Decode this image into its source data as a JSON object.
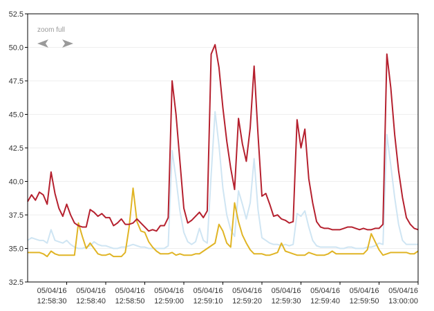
{
  "chart_data": {
    "type": "line",
    "title": "",
    "xlabel": "",
    "ylabel": "",
    "ylim": [
      32.5,
      52.5
    ],
    "xlim": [
      "12:58:20",
      "13:00:00"
    ],
    "grid": true,
    "y_ticks": [
      "52.5",
      "50.0",
      "47.5",
      "45.0",
      "42.5",
      "40.0",
      "37.5",
      "35.0",
      "32.5"
    ],
    "x_ticks": [
      {
        "date": "05/04/16",
        "time": "12:58:30"
      },
      {
        "date": "05/04/16",
        "time": "12:58:40"
      },
      {
        "date": "05/04/16",
        "time": "12:58:50"
      },
      {
        "date": "05/04/16",
        "time": "12:59:00"
      },
      {
        "date": "05/04/16",
        "time": "12:59:10"
      },
      {
        "date": "05/04/16",
        "time": "12:59:20"
      },
      {
        "date": "05/04/16",
        "time": "12:59:30"
      },
      {
        "date": "05/04/16",
        "time": "12:59:40"
      },
      {
        "date": "05/04/16",
        "time": "12:59:50"
      },
      {
        "date": "05/04/16",
        "time": "13:00:00"
      }
    ],
    "x": [
      "12:58:20",
      "12:58:21",
      "12:58:22",
      "12:58:23",
      "12:58:24",
      "12:58:25",
      "12:58:26",
      "12:58:27",
      "12:58:28",
      "12:58:29",
      "12:58:30",
      "12:58:31",
      "12:58:32",
      "12:58:33",
      "12:58:34",
      "12:58:35",
      "12:58:36",
      "12:58:37",
      "12:58:38",
      "12:58:39",
      "12:58:40",
      "12:58:41",
      "12:58:42",
      "12:58:43",
      "12:58:44",
      "12:58:45",
      "12:58:46",
      "12:58:47",
      "12:58:48",
      "12:58:49",
      "12:58:50",
      "12:58:51",
      "12:58:52",
      "12:58:53",
      "12:58:54",
      "12:58:55",
      "12:58:56",
      "12:58:57",
      "12:58:58",
      "12:58:59",
      "12:59:00",
      "12:59:01",
      "12:59:02",
      "12:59:03",
      "12:59:04",
      "12:59:05",
      "12:59:06",
      "12:59:07",
      "12:59:08",
      "12:59:09",
      "12:59:10",
      "12:59:11",
      "12:59:12",
      "12:59:13",
      "12:59:14",
      "12:59:15",
      "12:59:16",
      "12:59:17",
      "12:59:18",
      "12:59:19",
      "12:59:20",
      "12:59:21",
      "12:59:22",
      "12:59:23",
      "12:59:24",
      "12:59:25",
      "12:59:26",
      "12:59:27",
      "12:59:28",
      "12:59:29",
      "12:59:30",
      "12:59:31",
      "12:59:32",
      "12:59:33",
      "12:59:34",
      "12:59:35",
      "12:59:36",
      "12:59:37",
      "12:59:38",
      "12:59:39",
      "12:59:40",
      "12:59:41",
      "12:59:42",
      "12:59:43",
      "12:59:44",
      "12:59:45",
      "12:59:46",
      "12:59:47",
      "12:59:48",
      "12:59:49",
      "12:59:50",
      "12:59:51",
      "12:59:52",
      "12:59:53",
      "12:59:54",
      "12:59:55",
      "12:59:56",
      "12:59:57",
      "12:59:58",
      "12:59:59",
      "13:00:00"
    ],
    "series": [
      {
        "color": "#b5202e",
        "stroke_width": 2,
        "values": [
          38.5,
          39.0,
          38.6,
          39.2,
          39.0,
          38.3,
          40.7,
          39.1,
          38.0,
          37.4,
          38.3,
          37.5,
          36.9,
          36.7,
          36.6,
          36.6,
          37.9,
          37.7,
          37.4,
          37.6,
          37.3,
          37.3,
          36.7,
          36.9,
          37.2,
          36.8,
          36.8,
          36.9,
          37.2,
          36.9,
          36.6,
          36.3,
          36.4,
          36.3,
          36.7,
          36.7,
          37.3,
          47.5,
          45.0,
          41.5,
          38.0,
          36.9,
          37.1,
          37.4,
          37.7,
          37.3,
          37.8,
          49.5,
          50.2,
          48.5,
          45.5,
          43.0,
          41.0,
          39.4,
          44.7,
          42.8,
          41.5,
          44.0,
          48.6,
          43.5,
          38.9,
          39.1,
          38.3,
          37.4,
          37.5,
          37.2,
          37.1,
          36.9,
          37.0,
          44.6,
          42.5,
          43.9,
          40.2,
          38.4,
          37.0,
          36.6,
          36.5,
          36.5,
          36.4,
          36.4,
          36.4,
          36.5,
          36.6,
          36.6,
          36.5,
          36.4,
          36.5,
          36.4,
          36.4,
          36.5,
          36.5,
          36.8,
          49.5,
          47.0,
          43.5,
          40.8,
          38.8,
          37.3,
          36.8,
          36.5,
          36.4
        ]
      },
      {
        "color": "#cfe5f3",
        "stroke_width": 2,
        "values": [
          35.6,
          35.8,
          35.7,
          35.6,
          35.6,
          35.4,
          36.4,
          35.6,
          35.5,
          35.4,
          35.6,
          35.3,
          35.1,
          35.0,
          35.0,
          35.1,
          35.2,
          35.5,
          35.3,
          35.2,
          35.2,
          35.1,
          35.0,
          35.0,
          35.1,
          35.1,
          35.2,
          35.3,
          35.2,
          35.1,
          35.1,
          35.0,
          35.0,
          35.0,
          35.0,
          35.0,
          35.2,
          42.3,
          40.2,
          37.8,
          36.2,
          35.5,
          35.3,
          35.5,
          36.5,
          35.6,
          35.4,
          40.5,
          45.2,
          42.7,
          39.5,
          37.5,
          36.4,
          35.9,
          39.3,
          38.3,
          37.2,
          38.4,
          41.7,
          37.9,
          35.8,
          35.6,
          35.4,
          35.3,
          35.3,
          35.2,
          35.3,
          35.2,
          35.3,
          37.6,
          37.4,
          37.8,
          36.6,
          35.6,
          35.2,
          35.1,
          35.1,
          35.1,
          35.1,
          35.1,
          35.0,
          35.0,
          35.1,
          35.1,
          35.0,
          35.0,
          35.0,
          35.1,
          35.1,
          35.2,
          35.4,
          35.3,
          43.5,
          41.2,
          38.8,
          36.8,
          35.6,
          35.3,
          35.3,
          35.3,
          35.3
        ]
      },
      {
        "color": "#e0b424",
        "stroke_width": 2,
        "values": [
          34.7,
          34.7,
          34.7,
          34.7,
          34.6,
          34.4,
          34.8,
          34.6,
          34.5,
          34.5,
          34.5,
          34.5,
          34.5,
          36.9,
          35.9,
          35.0,
          35.4,
          35.0,
          34.6,
          34.5,
          34.5,
          34.6,
          34.4,
          34.4,
          34.4,
          34.7,
          36.6,
          39.5,
          37.0,
          36.3,
          36.2,
          35.5,
          35.1,
          34.8,
          34.6,
          34.6,
          34.6,
          34.7,
          34.5,
          34.6,
          34.5,
          34.5,
          34.5,
          34.6,
          34.6,
          34.8,
          35.0,
          35.2,
          35.4,
          36.8,
          36.3,
          35.4,
          35.1,
          38.4,
          37.0,
          36.0,
          35.4,
          34.9,
          34.6,
          34.6,
          34.6,
          34.5,
          34.5,
          34.6,
          34.7,
          35.4,
          34.8,
          34.7,
          34.6,
          34.5,
          34.5,
          34.5,
          34.7,
          34.6,
          34.5,
          34.5,
          34.5,
          34.6,
          34.8,
          34.6,
          34.6,
          34.6,
          34.6,
          34.6,
          34.6,
          34.6,
          34.6,
          34.9,
          36.1,
          35.5,
          34.9,
          34.5,
          34.6,
          34.7,
          34.7,
          34.7,
          34.7,
          34.7,
          34.6,
          34.6,
          34.8
        ]
      }
    ]
  },
  "controls": {
    "zoom_label": "zoom full",
    "prev_icon": "arrow-left-icon",
    "next_icon": "arrow-right-icon"
  }
}
